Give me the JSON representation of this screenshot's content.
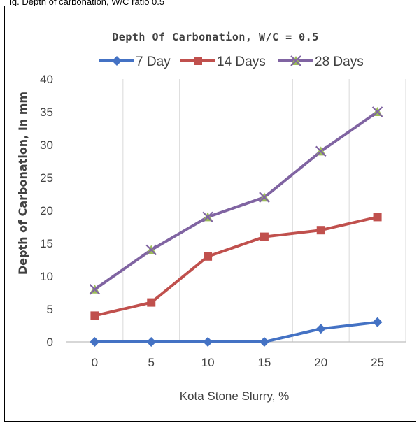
{
  "top_strip_text": "ig. Depth of carbonation, W/C ratio 0.5",
  "chart_data": {
    "type": "line",
    "title": "Depth Of Carbonation, W/C = 0.5",
    "xlabel": "Kota Stone Slurry, %",
    "ylabel": "Depth of Carbonation, In mm",
    "categories": [
      "0",
      "5",
      "10",
      "15",
      "20",
      "25"
    ],
    "ylim": [
      0,
      40
    ],
    "yticks": [
      "0",
      "5",
      "10",
      "15",
      "20",
      "25",
      "30",
      "35",
      "40"
    ],
    "grid": "vertical",
    "legend_position": "top",
    "series": [
      {
        "name": "7 Day",
        "values": [
          0,
          0,
          0,
          0,
          2,
          3
        ],
        "color": "#4472C4",
        "marker": "diamond"
      },
      {
        "name": "14 Days",
        "values": [
          4,
          6,
          13,
          16,
          17,
          19
        ],
        "color": "#C0504D",
        "marker": "square"
      },
      {
        "name": "28 Days",
        "values": [
          8,
          14,
          19,
          22,
          29,
          35
        ],
        "color": "#8064A2",
        "marker": "x-triangle",
        "marker_fill": "#9BBB59"
      }
    ]
  }
}
